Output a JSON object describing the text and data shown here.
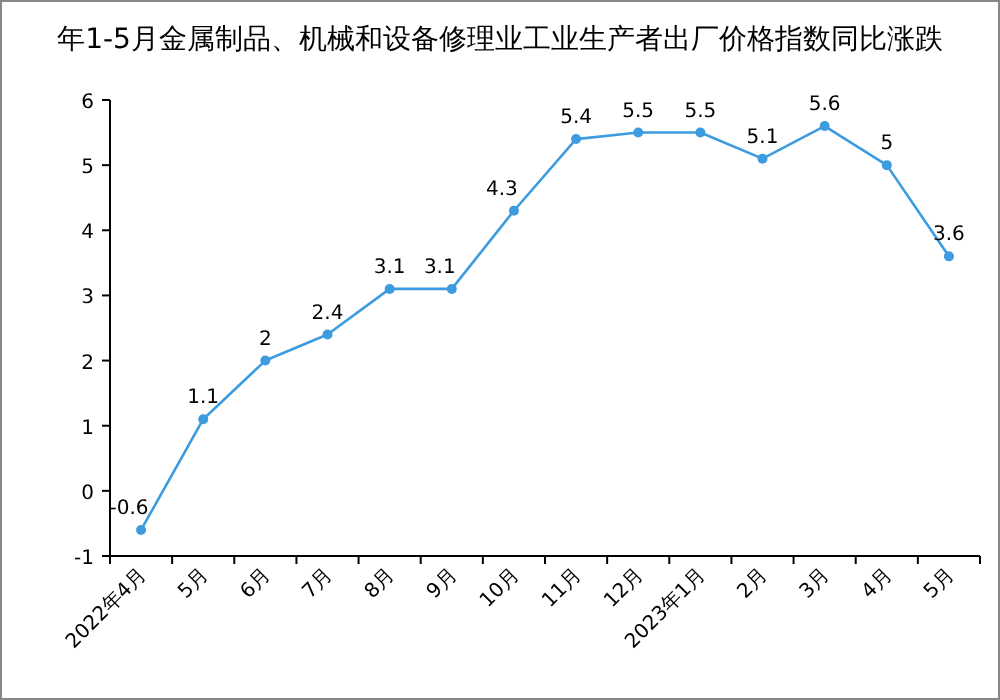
{
  "chart_data": {
    "type": "line",
    "title": "年1-5月金属制品、机械和设备修理业工业生产者出厂价格指数同比涨跌",
    "categories": [
      "2022年4月",
      "5月",
      "6月",
      "7月",
      "8月",
      "9月",
      "10月",
      "11月",
      "12月",
      "2023年1月",
      "2月",
      "3月",
      "4月",
      "5月"
    ],
    "series": [
      {
        "color": "#3d9be0",
        "values": [
          -0.6,
          1.1,
          2,
          2.4,
          3.1,
          3.1,
          4.3,
          5.4,
          5.5,
          5.5,
          5.1,
          5.6,
          5,
          3.6
        ]
      }
    ],
    "ylim": [
      -1,
      6
    ],
    "yticks": [
      -1,
      0,
      1,
      2,
      3,
      4,
      5,
      6
    ],
    "marker": "circle",
    "line_style": "solid",
    "data_labels": true
  }
}
